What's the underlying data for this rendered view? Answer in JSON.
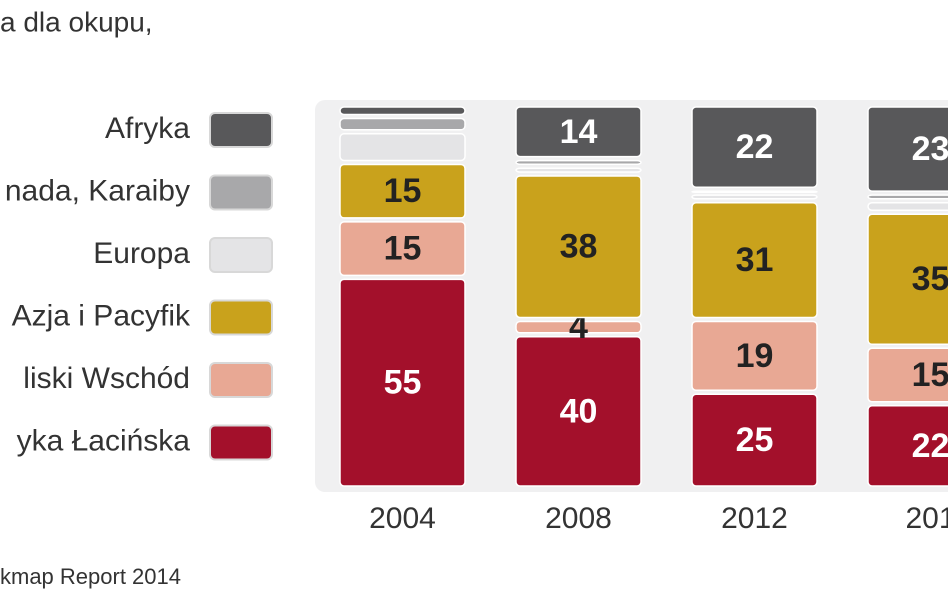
{
  "chart_data": {
    "type": "stacked_bar",
    "title": "a dla okupu,",
    "source": "kmap Report 2014",
    "categories": [
      "2004",
      "2008",
      "2012",
      "201"
    ],
    "ylim": [
      0,
      100
    ],
    "series": [
      {
        "name": "yka Łacińska",
        "color": "#a3102b",
        "values": [
          55,
          40,
          25,
          22
        ],
        "value_labels": [
          "55",
          "40",
          "25",
          "22"
        ]
      },
      {
        "name": "liski Wschód",
        "color": "#e8a894",
        "values": [
          15,
          4,
          19,
          15
        ],
        "value_labels": [
          "15",
          "4",
          "19",
          "15"
        ]
      },
      {
        "name": "Azja i Pacyfik",
        "color": "#c9a21c",
        "values": [
          15,
          38,
          31,
          35
        ],
        "value_labels": [
          "15",
          "38",
          "31",
          "35"
        ]
      },
      {
        "name": "Europa",
        "color": "#e4e4e6",
        "values": [
          8,
          2,
          2,
          3
        ],
        "value_labels": [
          null,
          null,
          null,
          null
        ]
      },
      {
        "name": "nada, Karaiby",
        "color": "#a8a8aa",
        "values": [
          4,
          2,
          1,
          2
        ],
        "value_labels": [
          null,
          null,
          null,
          null
        ]
      },
      {
        "name": "Afryka",
        "color": "#58585a",
        "values": [
          3,
          14,
          22,
          23
        ],
        "value_labels": [
          null,
          "14",
          "22",
          "23"
        ]
      }
    ]
  }
}
